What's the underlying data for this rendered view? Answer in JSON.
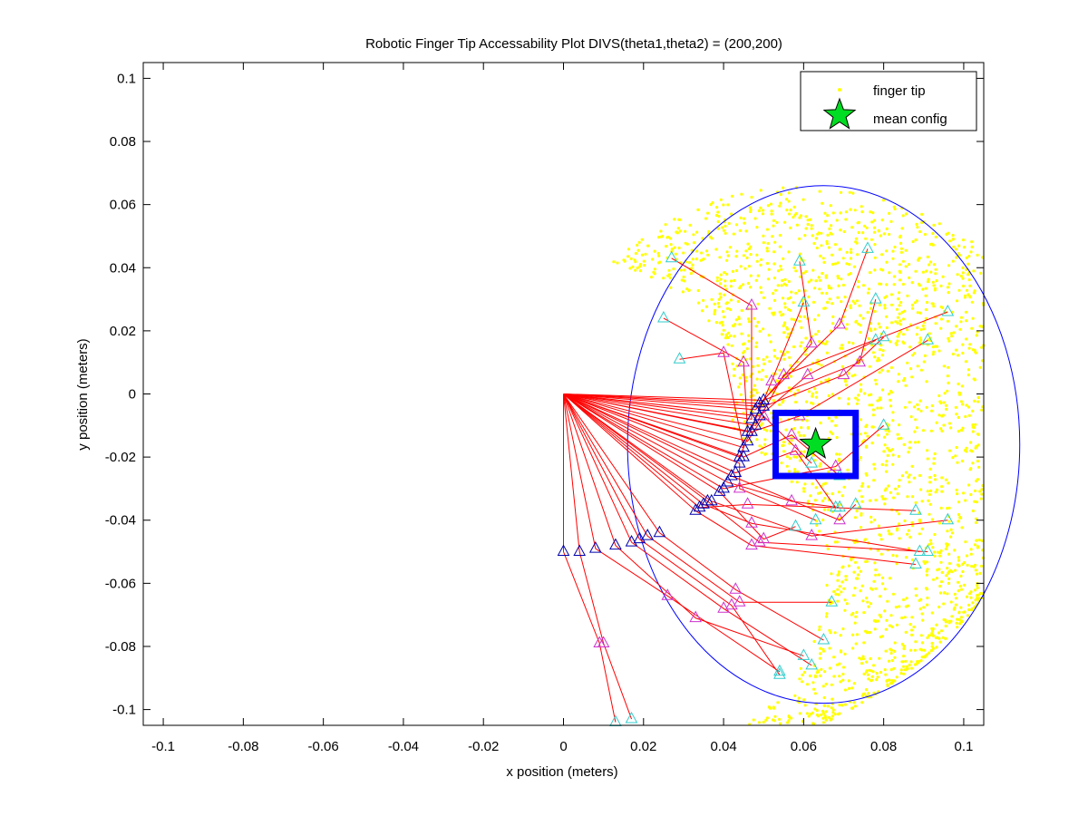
{
  "chart_data": {
    "type": "scatter",
    "title": "Robotic Finger Tip Accessability Plot DIVS(theta1,theta2) = (200,200)",
    "xlabel": "x position (meters)",
    "ylabel": "y position (meters)",
    "xlim": [
      -0.105,
      0.105
    ],
    "ylim": [
      -0.105,
      0.105
    ],
    "xticks": [
      -0.1,
      -0.08,
      -0.06,
      -0.04,
      -0.02,
      0,
      0.02,
      0.04,
      0.06,
      0.08,
      0.1
    ],
    "xtick_labels": [
      "-0.1",
      "-0.08",
      "-0.06",
      "-0.04",
      "-0.02",
      "0",
      "0.02",
      "0.04",
      "0.06",
      "0.08",
      "0.1"
    ],
    "yticks": [
      0.1,
      0.08,
      0.06,
      0.04,
      0.02,
      0,
      -0.02,
      -0.04,
      -0.06,
      -0.08,
      -0.1
    ],
    "ytick_labels": [
      "0.1",
      "0.08",
      "0.06",
      "0.04",
      "0.02",
      "0",
      "-0.02",
      "-0.04",
      "-0.06",
      "-0.08",
      "-0.1"
    ],
    "grid": false,
    "legend_position": "top-right",
    "legend": [
      {
        "label": "finger tip",
        "marker": "dot",
        "color": "#ffff00"
      },
      {
        "label": "mean config",
        "marker": "star",
        "color": "#00dd22"
      }
    ],
    "base": [
      0,
      0
    ],
    "mean_config": [
      0.063,
      -0.016
    ],
    "workspace_ellipse": {
      "center": [
        0.065,
        -0.016
      ],
      "rx": 0.049,
      "ry": 0.082,
      "color": "#0000ff"
    },
    "highlight_box": {
      "x": [
        0.053,
        0.073
      ],
      "y": [
        -0.026,
        -0.006
      ],
      "color": "#0000ff"
    },
    "colors": {
      "finger_tip": "#ffff00",
      "links": "#ff0000",
      "joint1": "#0000aa",
      "joint2": "#cc33cc",
      "tip": "#33cccc"
    },
    "configurations": [
      {
        "j1": [
          0,
          -0.05
        ],
        "j2": [
          0.009,
          -0.079
        ],
        "tip": [
          0.013,
          -0.104
        ]
      },
      {
        "j1": [
          0.004,
          -0.05
        ],
        "j2": [
          0.01,
          -0.079
        ],
        "tip": [
          0.017,
          -0.103
        ]
      },
      {
        "j1": [
          0.008,
          -0.049
        ],
        "j2": [
          0.026,
          -0.064
        ],
        "tip": [
          0.054,
          -0.088
        ]
      },
      {
        "j1": [
          0.013,
          -0.048
        ],
        "j2": [
          0.033,
          -0.071
        ],
        "tip": [
          0.06,
          -0.083
        ]
      },
      {
        "j1": [
          0.017,
          -0.047
        ],
        "j2": [
          0.04,
          -0.068
        ],
        "tip": [
          0.062,
          -0.086
        ]
      },
      {
        "j1": [
          0.019,
          -0.046
        ],
        "j2": [
          0.042,
          -0.067
        ],
        "tip": [
          0.054,
          -0.089
        ]
      },
      {
        "j1": [
          0.021,
          -0.045
        ],
        "j2": [
          0.044,
          -0.066
        ],
        "tip": [
          0.067,
          -0.066
        ]
      },
      {
        "j1": [
          0.024,
          -0.044
        ],
        "j2": [
          0.043,
          -0.062
        ],
        "tip": [
          0.065,
          -0.078
        ]
      },
      {
        "j1": [
          0.033,
          -0.037
        ],
        "j2": [
          0.047,
          -0.048
        ],
        "tip": [
          0.088,
          -0.054
        ]
      },
      {
        "j1": [
          0.035,
          -0.035
        ],
        "j2": [
          0.047,
          -0.041
        ],
        "tip": [
          0.089,
          -0.05
        ]
      },
      {
        "j1": [
          0.036,
          -0.034
        ],
        "j2": [
          0.049,
          -0.047
        ],
        "tip": [
          0.091,
          -0.05
        ]
      },
      {
        "j1": [
          0.037,
          -0.034
        ],
        "j2": [
          0.062,
          -0.045
        ],
        "tip": [
          0.096,
          -0.04
        ]
      },
      {
        "j1": [
          0.034,
          -0.036
        ],
        "j2": [
          0.046,
          -0.035
        ],
        "tip": [
          0.088,
          -0.037
        ]
      },
      {
        "j1": [
          0.041,
          -0.028
        ],
        "j2": [
          0.057,
          -0.034
        ],
        "tip": [
          0.069,
          -0.036
        ]
      },
      {
        "j1": [
          0.042,
          -0.026
        ],
        "j2": [
          0.069,
          -0.04
        ],
        "tip": [
          0.073,
          -0.035
        ]
      },
      {
        "j1": [
          0.043,
          -0.025
        ],
        "j2": [
          0.058,
          -0.018
        ],
        "tip": [
          0.068,
          -0.036
        ]
      },
      {
        "j1": [
          0.044,
          -0.022
        ],
        "j2": [
          0.044,
          -0.03
        ],
        "tip": [
          0.063,
          -0.04
        ]
      },
      {
        "j1": [
          0.045,
          -0.02
        ],
        "j2": [
          0.057,
          -0.013
        ],
        "tip": [
          0.069,
          -0.026
        ]
      },
      {
        "j1": [
          0.046,
          -0.015
        ],
        "j2": [
          0.05,
          -0.007
        ],
        "tip": [
          0.062,
          -0.022
        ]
      },
      {
        "j1": [
          0.047,
          -0.012
        ],
        "j2": [
          0.059,
          -0.007
        ],
        "tip": [
          0.091,
          0.017
        ]
      },
      {
        "j1": [
          0.048,
          -0.01
        ],
        "j2": [
          0.055,
          0.006
        ],
        "tip": [
          0.096,
          0.026
        ]
      },
      {
        "j1": [
          0.049,
          -0.007
        ],
        "j2": [
          0.061,
          0.006
        ],
        "tip": [
          0.078,
          0.017
        ]
      },
      {
        "j1": [
          0.05,
          -0.004
        ],
        "j2": [
          0.07,
          0.006
        ],
        "tip": [
          0.08,
          0.018
        ]
      },
      {
        "j1": [
          0.05,
          -0.002
        ],
        "j2": [
          0.074,
          0.01
        ],
        "tip": [
          0.078,
          0.03
        ]
      },
      {
        "j1": [
          0.049,
          -0.003
        ],
        "j2": [
          0.069,
          0.022
        ],
        "tip": [
          0.076,
          0.046
        ]
      },
      {
        "j1": [
          0.048,
          -0.005
        ],
        "j2": [
          0.062,
          0.016
        ],
        "tip": [
          0.059,
          0.042
        ]
      },
      {
        "j1": [
          0.047,
          -0.008
        ],
        "j2": [
          0.047,
          0.028
        ],
        "tip": [
          0.027,
          0.043
        ]
      },
      {
        "j1": [
          0.046,
          -0.012
        ],
        "j2": [
          0.045,
          0.01
        ],
        "tip": [
          0.025,
          0.024
        ]
      },
      {
        "j1": [
          0.045,
          -0.017
        ],
        "j2": [
          0.04,
          0.013
        ],
        "tip": [
          0.029,
          0.011
        ]
      },
      {
        "j1": [
          0.044,
          -0.02
        ],
        "j2": [
          0.052,
          0.004
        ],
        "tip": [
          0.06,
          0.029
        ]
      },
      {
        "j1": [
          0.04,
          -0.03
        ],
        "j2": [
          0.068,
          -0.023
        ],
        "tip": [
          0.08,
          -0.01
        ]
      },
      {
        "j1": [
          0.039,
          -0.031
        ],
        "j2": [
          0.05,
          -0.046
        ],
        "tip": [
          0.058,
          -0.042
        ]
      }
    ]
  }
}
